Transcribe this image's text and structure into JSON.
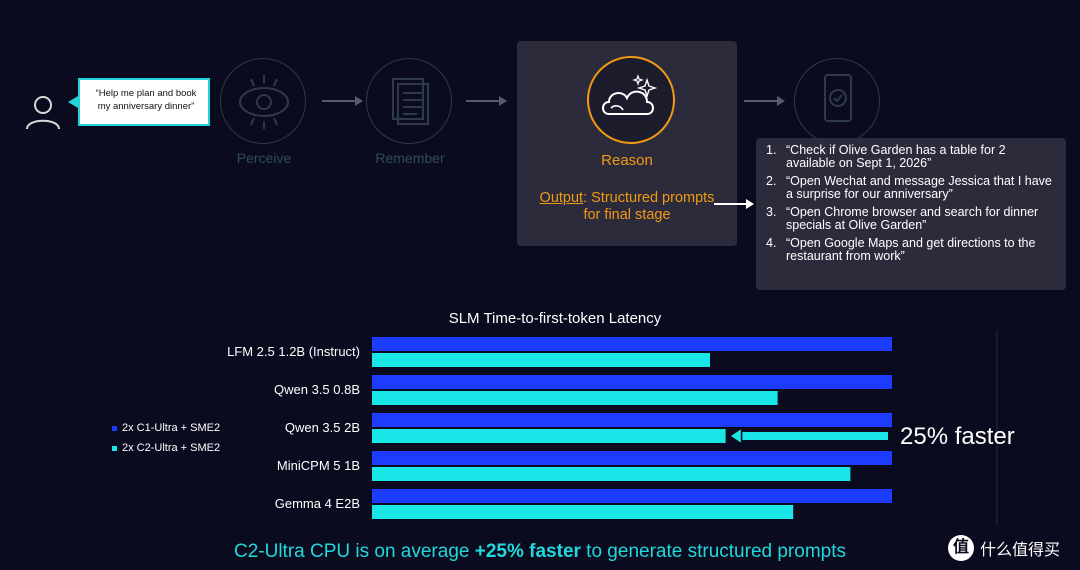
{
  "flow": {
    "user_prompt": "“Help me plan and book my anniversary dinner”",
    "stages": [
      {
        "label": "Perceive",
        "icon": "eye-icon"
      },
      {
        "label": "Remember",
        "icon": "document-icon"
      },
      {
        "label": "Reason",
        "icon": "cloud-sparkle-icon"
      },
      {
        "label": "",
        "icon": "phone-check-icon"
      }
    ],
    "output_prefix": "Output",
    "output_rest": ": Structured prompts for final stage",
    "prompts": [
      {
        "num": "1.",
        "text": "“Check if Olive Garden has a table for 2 available on Sept 1, 2026”"
      },
      {
        "num": "2.",
        "text": "“Open Wechat and message Jessica that I have a surprise for our anniversary”"
      },
      {
        "num": "3.",
        "text": "“Open Chrome browser and search for dinner specials at Olive Garden”"
      },
      {
        "num": "4.",
        "text": "“Open Google Maps and get directions to the restaurant from work”"
      }
    ]
  },
  "chart_data": {
    "type": "bar",
    "orientation": "horizontal",
    "title": "SLM Time-to-first-token Latency",
    "categories": [
      "LFM 2.5 1.2B (Instruct)",
      "Qwen 3.5 0.8B",
      "Qwen 3.5 2B",
      "MiniCPM 5 1B",
      "Gemma 4 E2B"
    ],
    "series": [
      {
        "name": "2x C1-Ultra + SME2",
        "color": "#1e3cff",
        "values": [
          1.0,
          1.0,
          1.0,
          1.0,
          1.0
        ]
      },
      {
        "name": "2x C2-Ultra + SME2",
        "color": "#19e6e6",
        "values": [
          0.65,
          0.78,
          0.68,
          0.92,
          0.81
        ]
      }
    ],
    "xlim": [
      0,
      1.2
    ],
    "legend_position": "left",
    "annotation": "25% faster"
  },
  "footer": {
    "pre": "C2-Ultra CPU is on average ",
    "bold": "+25% faster",
    "post": " to generate structured prompts"
  },
  "watermark": {
    "logo": "值",
    "text": "什么值得买"
  }
}
